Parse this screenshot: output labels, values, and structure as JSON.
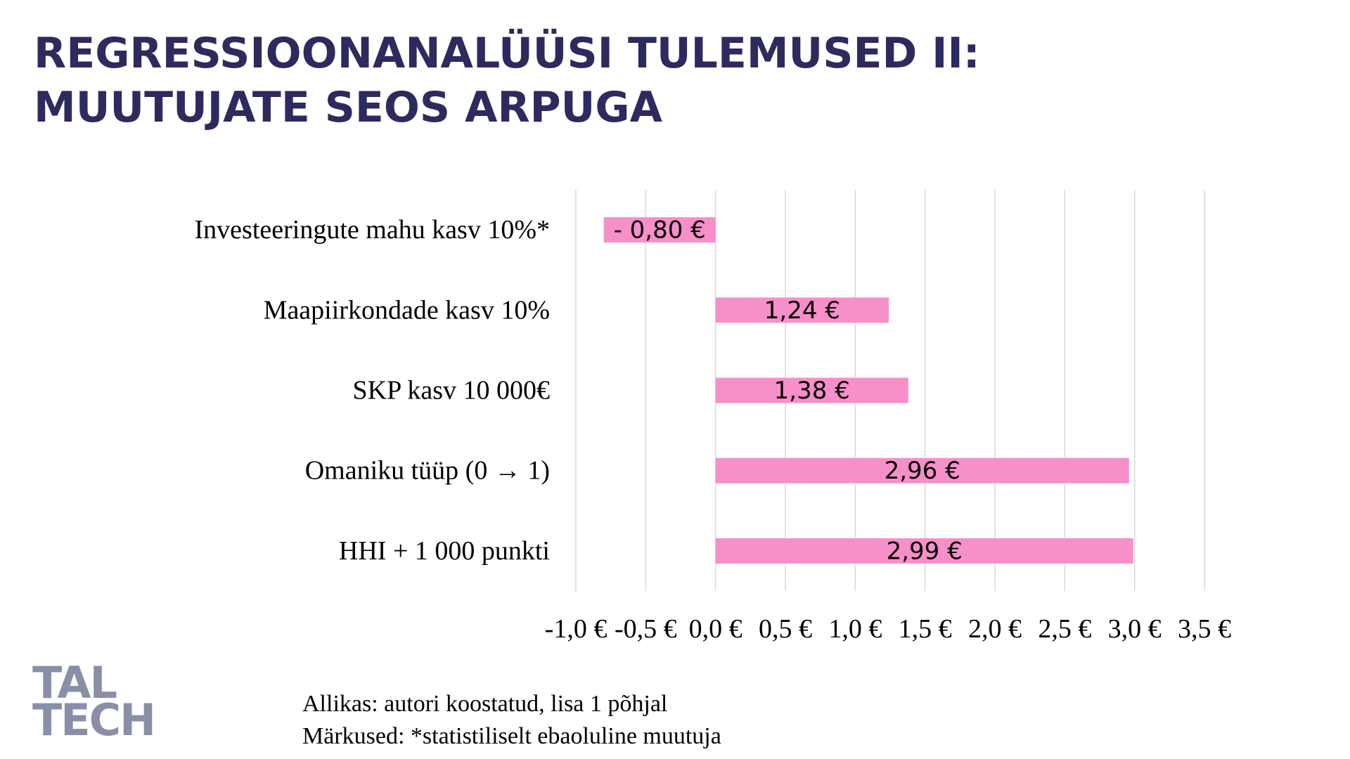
{
  "chart_data": {
    "type": "bar",
    "orientation": "horizontal",
    "title": [
      "REGRESSIOONANALÜÜSI TULEMUSED II:",
      "MUUTUJATE SEOS ARPUGA"
    ],
    "categories": [
      "Investeeringute mahu kasv 10%*",
      "Maapiirkondade kasv 10%",
      "SKP kasv 10 000€",
      "Omaniku tüüp (0 → 1)",
      "HHI + 1 000 punkti"
    ],
    "values": [
      -0.8,
      1.24,
      1.38,
      2.96,
      2.99
    ],
    "value_labels": [
      "- 0,80 €",
      "1,24 €",
      "1,38 €",
      "2,96 €",
      "2,99 €"
    ],
    "color": "#f78fc9",
    "xlim": [
      -1,
      3.5
    ],
    "xticks": [
      {
        "value": -1,
        "label": "-1,0 €"
      },
      {
        "value": -0.5,
        "label": "-0,5 €"
      },
      {
        "value": 0,
        "label": "0,0 €"
      },
      {
        "value": 0.5,
        "label": "0,5 €"
      },
      {
        "value": 1,
        "label": "1,0 €"
      },
      {
        "value": 1.5,
        "label": "1,5 €"
      },
      {
        "value": 2,
        "label": "2,0 €"
      },
      {
        "value": 2.5,
        "label": "2,5 €"
      },
      {
        "value": 3,
        "label": "3,0 €"
      },
      {
        "value": 3.5,
        "label": "3,5 €"
      }
    ],
    "grid": true
  },
  "logo": [
    "TAL",
    "TECH"
  ],
  "source": "Allikas: autori koostatud, lisa 1 põhjal",
  "notes": "Märkused: *statistiliselt ebaoluline muutuja"
}
